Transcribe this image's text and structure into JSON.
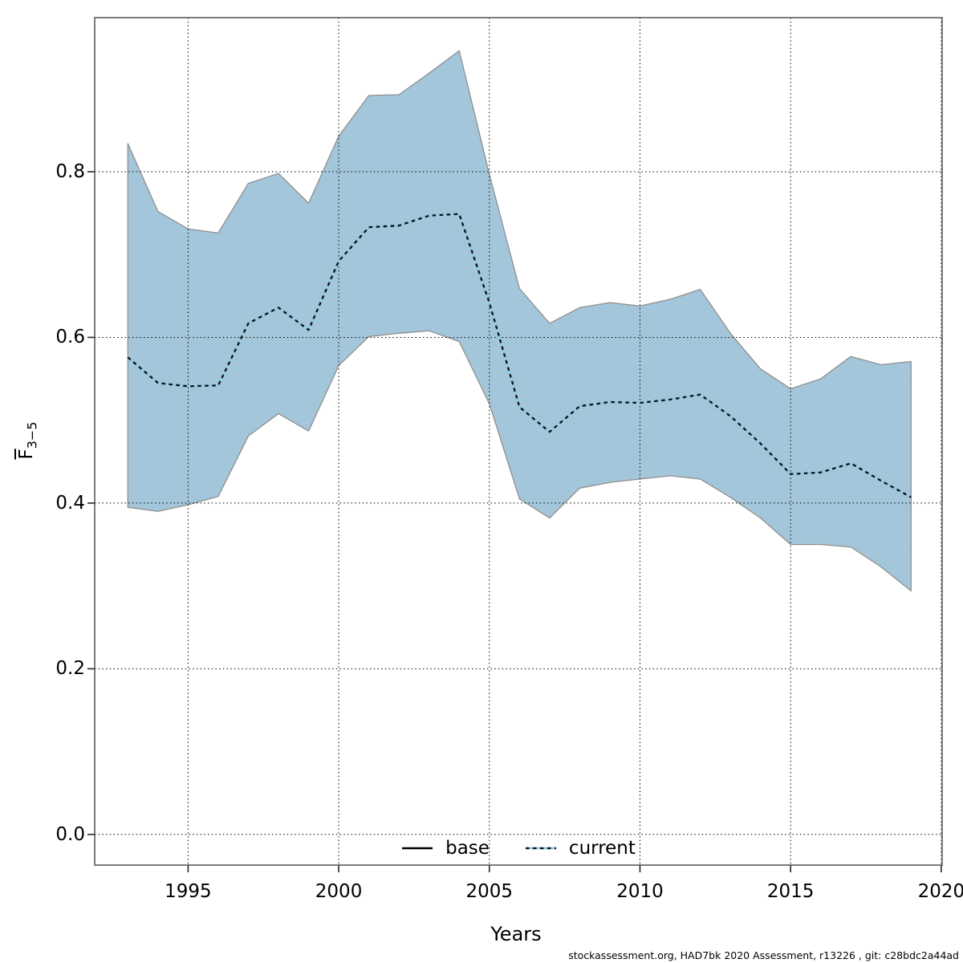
{
  "page": {
    "background": "#ffffff"
  },
  "footer": {
    "text": "stockassessment.org, HAD7bk 2020 Assessment, r13226 , git: c28bdc2a44ad"
  },
  "legend": {
    "items": [
      {
        "label": "base",
        "line_style": "solid",
        "color": "#000000"
      },
      {
        "label": "current",
        "line_style": "dotted",
        "color": "#8ecae6"
      }
    ]
  },
  "colors": {
    "band_fill": "#a4c6da",
    "band_edge": "#8f8f8f",
    "current_line_under": "#8ecae6",
    "current_line_dash": "#111111",
    "base_line": "#000000",
    "grid_line": "#000000",
    "frame": "#666666",
    "tick": "#333333"
  },
  "chart_data": {
    "type": "area",
    "title": "",
    "xlabel": "Years",
    "ylabel": {
      "letter": "F",
      "overline": true,
      "subscript": "3−5",
      "display": "F̄3−5"
    },
    "grid": "dotted",
    "legend_position": "bottom-center-inside",
    "x_axis": {
      "ticks": [
        1995,
        2000,
        2005,
        2010,
        2015,
        2020
      ],
      "range": [
        1991.9,
        2020.03
      ]
    },
    "y_axis": {
      "ticks": [
        0.0,
        0.2,
        0.4,
        0.6,
        0.8
      ],
      "tick_labels": [
        "0.0",
        "0.2",
        "0.4",
        "0.6",
        "0.8"
      ],
      "range": [
        -0.037,
        0.986
      ]
    },
    "years": [
      1993,
      1994,
      1995,
      1996,
      1997,
      1998,
      1999,
      2000,
      2001,
      2002,
      2003,
      2004,
      2005,
      2006,
      2007,
      2008,
      2009,
      2010,
      2011,
      2012,
      2013,
      2014,
      2015,
      2016,
      2017,
      2018,
      2019
    ],
    "series": [
      {
        "name": "current",
        "values": [
          0.576,
          0.545,
          0.541,
          0.542,
          0.617,
          0.636,
          0.609,
          0.692,
          0.733,
          0.735,
          0.747,
          0.749,
          0.642,
          0.516,
          0.486,
          0.517,
          0.522,
          0.521,
          0.525,
          0.531,
          0.505,
          0.472,
          0.435,
          0.437,
          0.448,
          0.427,
          0.407
        ]
      }
    ],
    "band": {
      "name": "confidence-band",
      "upper": [
        0.834,
        0.752,
        0.731,
        0.726,
        0.786,
        0.798,
        0.762,
        0.843,
        0.892,
        0.893,
        0.919,
        0.946,
        0.797,
        0.659,
        0.617,
        0.636,
        0.642,
        0.638,
        0.646,
        0.658,
        0.605,
        0.562,
        0.538,
        0.55,
        0.577,
        0.567,
        0.571
      ],
      "lower": [
        0.395,
        0.39,
        0.398,
        0.408,
        0.481,
        0.508,
        0.487,
        0.566,
        0.601,
        0.605,
        0.608,
        0.595,
        0.52,
        0.405,
        0.382,
        0.418,
        0.425,
        0.429,
        0.433,
        0.429,
        0.407,
        0.382,
        0.35,
        0.35,
        0.347,
        0.323,
        0.294
      ]
    }
  }
}
